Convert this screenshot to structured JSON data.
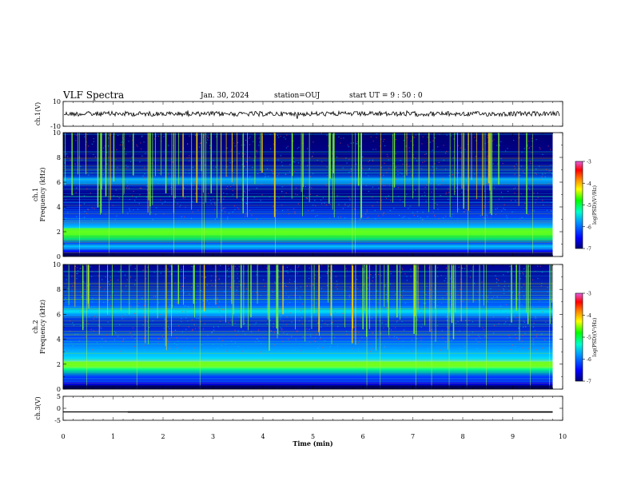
{
  "header": {
    "title": "VLF Spectra",
    "date": "Jan. 30, 2024",
    "station": "station=OUJ",
    "start": "start UT =  9 : 50 : 0"
  },
  "colors": {
    "frame": "#000000",
    "spectrogram_background": "#00008b",
    "hum_band": "#3cff00",
    "spike": "#7cff2a",
    "colormap": [
      "#000078",
      "#0000ff",
      "#0096ff",
      "#00ffcc",
      "#00ff00",
      "#ffff00",
      "#ff8000",
      "#ff0000",
      "#e060e0"
    ]
  },
  "chart_data": [
    {
      "type": "line",
      "ylabel": "ch.1(V)",
      "ylim": [
        -10,
        10
      ],
      "yticks": [
        "10",
        "-10"
      ],
      "xlim": [
        0,
        10
      ],
      "x_unit": "min",
      "series_description": "noise waveform around 0 V",
      "baseline_value": 0
    },
    {
      "type": "heatmap",
      "ylabel": "ch.1\nFrequency (kHz)",
      "ylim": [
        0,
        10
      ],
      "yticks": [
        "0",
        "2",
        "4",
        "6",
        "8",
        "10"
      ],
      "xlim": [
        0,
        10
      ],
      "colorbar": {
        "label": "log(PSD)(V²/Hz)",
        "ticks": [
          "-3",
          "-4",
          "-5",
          "-6",
          "-7"
        ],
        "range": [
          -7,
          -3
        ]
      },
      "bands_khz": [
        1.9,
        2.1,
        6.1
      ],
      "data_end_min": 9.8
    },
    {
      "type": "heatmap",
      "ylabel": "ch.2\nFrequency (kHz)",
      "ylim": [
        0,
        10
      ],
      "yticks": [
        "0",
        "2",
        "4",
        "6",
        "8",
        "10"
      ],
      "xlim": [
        0,
        10
      ],
      "colorbar": {
        "label": "log(PSD)(V²/Hz)",
        "ticks": [
          "-3",
          "-4",
          "-5",
          "-6",
          "-7"
        ],
        "range": [
          -7,
          -3
        ]
      },
      "bands_khz": [
        2.0,
        6.1
      ],
      "data_end_min": 9.8
    },
    {
      "type": "line",
      "ylabel": "ch.3(V)",
      "ylim": [
        -5,
        5
      ],
      "yticks": [
        "5",
        "0",
        "-5"
      ],
      "xlim": [
        0,
        10
      ],
      "xlabel": "Time (min)",
      "xticks": [
        "0",
        "1",
        "2",
        "3",
        "4",
        "5",
        "6",
        "7",
        "8",
        "9",
        "10"
      ],
      "x": [
        0,
        1.3,
        1.3,
        9.8
      ],
      "y": [
        -1.5,
        -1.5,
        -1.6,
        -1.6
      ]
    }
  ]
}
